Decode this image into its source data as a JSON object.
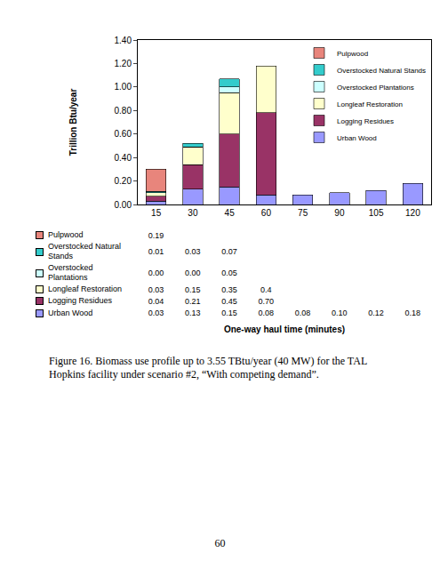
{
  "chart_data": {
    "type": "bar",
    "stacked": true,
    "ylabel": "Trillion Btu/year",
    "xlabel": "One-way haul time (minutes)",
    "categories": [
      "15",
      "30",
      "45",
      "60",
      "75",
      "90",
      "105",
      "120"
    ],
    "series": [
      {
        "name": "Pulpwood",
        "color": "#e8857c",
        "values": [
          0.19,
          null,
          null,
          null,
          null,
          null,
          null,
          null
        ],
        "value_labels": [
          "0.19",
          null,
          null,
          null,
          null,
          null,
          null,
          null
        ]
      },
      {
        "name": "Overstocked Natural Stands",
        "color": "#33cccc",
        "values": [
          0.01,
          0.03,
          0.07,
          null,
          null,
          null,
          null,
          null
        ],
        "value_labels": [
          "0.01",
          "0.03",
          "0.07",
          null,
          null,
          null,
          null,
          null
        ]
      },
      {
        "name": "Overstocked Plantations",
        "color": "#ccffff",
        "values": [
          0.0,
          0.0,
          0.05,
          null,
          null,
          null,
          null,
          null
        ],
        "value_labels": [
          "0.00",
          "0.00",
          "0.05",
          null,
          null,
          null,
          null,
          null
        ]
      },
      {
        "name": "Longleaf Restoration",
        "color": "#ffffcc",
        "values": [
          0.03,
          0.15,
          0.35,
          0.4,
          null,
          null,
          null,
          null
        ],
        "value_labels": [
          "0.03",
          "0.15",
          "0.35",
          "0.4",
          null,
          null,
          null,
          null
        ]
      },
      {
        "name": "Logging Residues",
        "color": "#993366",
        "values": [
          0.04,
          0.21,
          0.45,
          0.7,
          null,
          null,
          null,
          null
        ],
        "value_labels": [
          "0.04",
          "0.21",
          "0.45",
          "0.70",
          null,
          null,
          null,
          null
        ]
      },
      {
        "name": "Urban Wood",
        "color": "#9999ff",
        "values": [
          0.03,
          0.13,
          0.15,
          0.08,
          0.08,
          0.1,
          0.12,
          0.18
        ],
        "value_labels": [
          "0.03",
          "0.13",
          "0.15",
          "0.08",
          "0.08",
          "0.10",
          "0.12",
          "0.18"
        ]
      }
    ],
    "ylim": [
      0,
      1.4
    ],
    "yticks": [
      {
        "value": 0,
        "label": "0.00"
      },
      {
        "value": 0.2,
        "label": "0.20"
      },
      {
        "value": 0.4,
        "label": "0.40"
      },
      {
        "value": 0.6,
        "label": "0.60"
      },
      {
        "value": 0.8,
        "label": "0.80"
      },
      {
        "value": 1.0,
        "label": "1.00"
      },
      {
        "value": 1.2,
        "label": "1.20"
      },
      {
        "value": 1.4,
        "label": "1.40"
      }
    ],
    "grid": false,
    "legend": "top-right"
  },
  "caption": "Figure 16.  Biomass use profile up to 3.55 TBtu/year (40 MW) for the TAL Hopkins facility under scenario #2, “With competing demand”.",
  "page_number": "60"
}
